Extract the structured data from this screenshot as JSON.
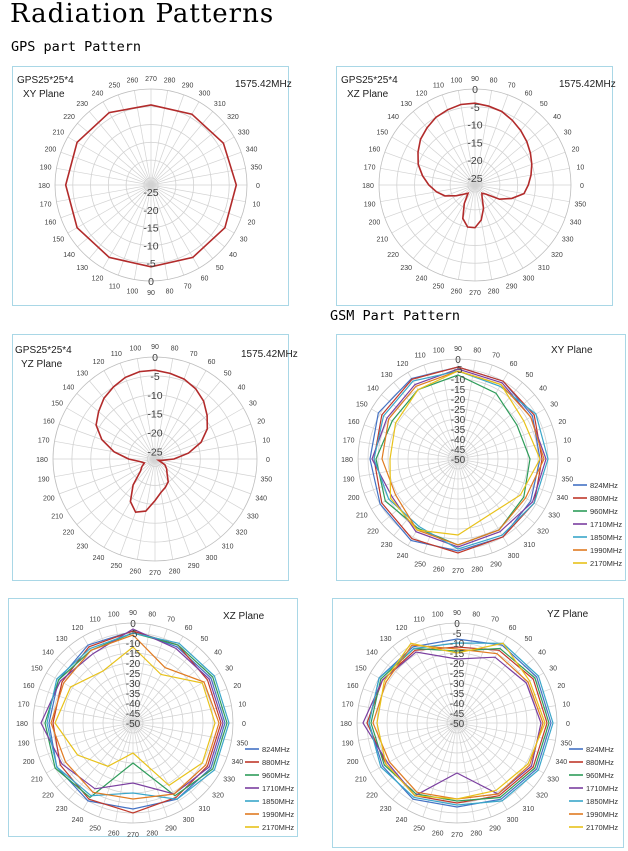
{
  "page": {
    "title": "Radiation Patterns",
    "gps_section": "GPS part Pattern",
    "gsm_section": "GSM Part Pattern"
  },
  "chart_data": [
    {
      "type": "polar-line",
      "label": "GPS25*25*4",
      "plane": "XY Plane",
      "frequency": "1575.42MHz",
      "r_ticks": [
        0,
        -5,
        -10,
        -15,
        -20,
        -25
      ],
      "r_min": -27,
      "r_max": 0,
      "theta_labels": [
        0,
        10,
        20,
        30,
        40,
        50,
        60,
        70,
        80,
        90,
        100,
        110,
        120,
        130,
        140,
        150,
        160,
        170,
        180,
        190,
        200,
        210,
        220,
        230,
        240,
        250,
        260,
        270,
        280,
        290,
        300,
        310,
        320,
        330,
        340,
        350
      ],
      "angle_orientation": "0 at right, increasing clockwise",
      "series": [
        {
          "color": "#b22b2b",
          "angles": [
            0,
            30,
            60,
            90,
            120,
            150,
            180,
            210,
            240,
            270,
            300,
            330
          ],
          "values": [
            -3.0,
            -3.0,
            -3.5,
            -4.0,
            -3.5,
            -3.0,
            -3.0,
            -3.0,
            -3.5,
            -4.5,
            -4.0,
            -3.5
          ]
        }
      ]
    },
    {
      "type": "polar-line",
      "label": "GPS25*25*4",
      "plane": "XZ Plane",
      "frequency": "1575.42MHz",
      "r_ticks": [
        0,
        -5,
        -10,
        -15,
        -20,
        -25
      ],
      "r_min": -27,
      "r_max": 0,
      "theta_labels": [
        0,
        10,
        20,
        30,
        40,
        50,
        60,
        70,
        80,
        90,
        100,
        110,
        120,
        130,
        140,
        150,
        160,
        170,
        180,
        190,
        200,
        210,
        220,
        230,
        240,
        250,
        260,
        270,
        280,
        290,
        300,
        310,
        320,
        330,
        340,
        350
      ],
      "angle_orientation": "0 at right, increasing counter-clockwise",
      "series": [
        {
          "color": "#b22b2b",
          "angles": [
            0,
            10,
            20,
            30,
            40,
            50,
            60,
            70,
            80,
            90,
            100,
            110,
            120,
            130,
            140,
            150,
            160,
            170,
            180,
            190,
            200,
            210,
            220,
            230,
            240,
            250,
            260,
            270,
            280,
            290,
            300,
            310,
            320,
            330,
            340,
            350
          ],
          "values": [
            -12,
            -11,
            -10,
            -9,
            -8,
            -7,
            -6,
            -5,
            -4.5,
            -4,
            -4,
            -4.5,
            -5,
            -6,
            -7,
            -8.5,
            -10,
            -12,
            -14,
            -16,
            -18,
            -21,
            -23,
            -24,
            -21,
            -17,
            -15,
            -15,
            -17,
            -20,
            -23,
            -24,
            -23,
            -19,
            -16,
            -13
          ]
        }
      ]
    },
    {
      "type": "polar-line",
      "label": "GPS25*25*4",
      "plane": "YZ Plane",
      "frequency": "1575.42MHz",
      "r_ticks": [
        0,
        -5,
        -10,
        -15,
        -20,
        -25
      ],
      "r_min": -27,
      "r_max": 0,
      "theta_labels": [
        0,
        10,
        20,
        30,
        40,
        50,
        60,
        70,
        80,
        90,
        100,
        110,
        120,
        130,
        140,
        150,
        160,
        170,
        180,
        190,
        200,
        210,
        220,
        230,
        240,
        250,
        260,
        270,
        280,
        290,
        300,
        310,
        320,
        330,
        340,
        350
      ],
      "angle_orientation": "0 at right, increasing counter-clockwise",
      "series": [
        {
          "color": "#b22b2b",
          "angles": [
            0,
            10,
            20,
            30,
            40,
            50,
            60,
            70,
            80,
            90,
            100,
            110,
            120,
            130,
            140,
            150,
            160,
            170,
            180,
            190,
            200,
            210,
            220,
            230,
            240,
            250,
            260,
            270,
            280,
            290,
            300,
            310,
            320,
            330,
            340,
            350
          ],
          "values": [
            -22,
            -18,
            -14,
            -11,
            -9,
            -7,
            -5.5,
            -4.5,
            -4,
            -3.5,
            -3.5,
            -4,
            -5,
            -6,
            -7.5,
            -9,
            -12,
            -16,
            -20,
            -23,
            -24,
            -23,
            -22,
            -18,
            -14,
            -12,
            -13,
            -16,
            -18,
            -19,
            -20,
            -22,
            -23,
            -24,
            -26,
            -25
          ]
        }
      ]
    },
    {
      "type": "polar-line",
      "plane": "XY Plane",
      "r_ticks": [
        0,
        -5,
        -10,
        -15,
        -20,
        -25,
        -30,
        -35,
        -40,
        -45,
        -50
      ],
      "r_min": -50,
      "r_max": 0,
      "theta_labels": [
        0,
        10,
        20,
        30,
        40,
        50,
        60,
        70,
        80,
        90,
        100,
        110,
        120,
        130,
        140,
        150,
        160,
        170,
        180,
        190,
        200,
        210,
        220,
        230,
        240,
        250,
        260,
        270,
        280,
        290,
        300,
        310,
        320,
        330,
        340,
        350
      ],
      "angle_orientation": "0 at right, increasing counter-clockwise",
      "series": [
        {
          "name": "824MHz",
          "color": "#4472c4",
          "angles": [
            0,
            30,
            60,
            90,
            120,
            150,
            180,
            210,
            240,
            270,
            300,
            330
          ],
          "values": [
            -9,
            -7,
            -5,
            -4,
            -3.5,
            -4,
            -6,
            -5,
            -3,
            -4,
            -5,
            -8
          ]
        },
        {
          "name": "880MHz",
          "color": "#c0392b",
          "angles": [
            0,
            30,
            60,
            90,
            120,
            150,
            180,
            210,
            240,
            270,
            300,
            330
          ],
          "values": [
            -8,
            -6,
            -5,
            -4,
            -4,
            -6,
            -8,
            -6,
            -4,
            -3,
            -5,
            -6
          ]
        },
        {
          "name": "960MHz",
          "color": "#2e9c5a",
          "angles": [
            0,
            30,
            60,
            90,
            120,
            150,
            180,
            210,
            240,
            270,
            300,
            330
          ],
          "values": [
            -14,
            -16,
            -12,
            -8,
            -10,
            -12,
            -9,
            -8,
            -10,
            -7,
            -9,
            -12
          ]
        },
        {
          "name": "1710MHz",
          "color": "#7b3fa0",
          "angles": [
            0,
            30,
            60,
            90,
            120,
            150,
            180,
            210,
            240,
            270,
            300,
            330
          ],
          "values": [
            -6,
            -8,
            -6,
            -5,
            -7,
            -9,
            -7,
            -12,
            -8,
            -6,
            -8,
            -7
          ]
        },
        {
          "name": "1850MHz",
          "color": "#3aa6c9",
          "angles": [
            0,
            30,
            60,
            90,
            120,
            150,
            180,
            210,
            240,
            270,
            300,
            330
          ],
          "values": [
            -5,
            -5,
            -8,
            -6,
            -5,
            -7,
            -8,
            -10,
            -11,
            -5,
            -6,
            -6
          ]
        },
        {
          "name": "1990MHz",
          "color": "#e07b22",
          "angles": [
            0,
            30,
            60,
            90,
            120,
            150,
            180,
            210,
            240,
            270,
            300,
            330
          ],
          "values": [
            -7,
            -8,
            -7,
            -6,
            -8,
            -10,
            -12,
            -14,
            -9,
            -7,
            -9,
            -11
          ]
        },
        {
          "name": "2170MHz",
          "color": "#e8c21a",
          "angles": [
            0,
            30,
            60,
            90,
            120,
            150,
            180,
            210,
            240,
            270,
            300,
            330
          ],
          "values": [
            -9,
            -12,
            -7,
            -6,
            -10,
            -14,
            -16,
            -11,
            -9,
            -12,
            -18,
            -14
          ]
        }
      ]
    },
    {
      "type": "polar-line",
      "plane": "XZ Plane",
      "r_ticks": [
        0,
        -5,
        -10,
        -15,
        -20,
        -25,
        -30,
        -35,
        -40,
        -45,
        -50
      ],
      "r_min": -50,
      "r_max": 0,
      "theta_labels": [
        0,
        10,
        20,
        30,
        40,
        50,
        60,
        70,
        80,
        90,
        100,
        110,
        120,
        130,
        140,
        150,
        160,
        170,
        180,
        190,
        200,
        210,
        220,
        230,
        240,
        250,
        260,
        270,
        280,
        290,
        300,
        310,
        320,
        330,
        340,
        350
      ],
      "angle_orientation": "0 at right, increasing counter-clockwise",
      "series": [
        {
          "name": "824MHz",
          "color": "#4472c4",
          "angles": [
            0,
            30,
            60,
            90,
            120,
            150,
            180,
            210,
            240,
            270,
            300,
            330
          ],
          "values": [
            -4,
            -5,
            -6,
            -4,
            -5,
            -7,
            -8,
            -6,
            -5,
            -7,
            -6,
            -5
          ]
        },
        {
          "name": "880MHz",
          "color": "#c0392b",
          "angles": [
            0,
            30,
            60,
            90,
            120,
            150,
            180,
            210,
            240,
            270,
            300,
            330
          ],
          "values": [
            -6,
            -7,
            -5,
            -4,
            -6,
            -9,
            -10,
            -8,
            -6,
            -5,
            -7,
            -7
          ]
        },
        {
          "name": "960MHz",
          "color": "#2e9c5a",
          "angles": [
            0,
            30,
            60,
            90,
            120,
            150,
            180,
            210,
            240,
            270,
            300,
            330
          ],
          "values": [
            -3,
            -4,
            -5,
            -5,
            -8,
            -7,
            -6,
            -5,
            -7,
            -30,
            -8,
            -4
          ]
        },
        {
          "name": "1710MHz",
          "color": "#7b3fa0",
          "angles": [
            0,
            30,
            60,
            90,
            120,
            150,
            180,
            210,
            240,
            270,
            300,
            330
          ],
          "values": [
            -5,
            -6,
            -7,
            -3,
            -10,
            -8,
            -4,
            -9,
            -12,
            -20,
            -9,
            -6
          ]
        },
        {
          "name": "1850MHz",
          "color": "#3aa6c9",
          "angles": [
            0,
            30,
            60,
            90,
            120,
            150,
            180,
            210,
            240,
            270,
            300,
            330
          ],
          "values": [
            -2,
            -3,
            -4,
            -5,
            -7,
            -6,
            -7,
            -6,
            -8,
            -15,
            -6,
            -3
          ]
        },
        {
          "name": "1990MHz",
          "color": "#e07b22",
          "angles": [
            0,
            30,
            60,
            90,
            120,
            150,
            180,
            210,
            240,
            270,
            300,
            330
          ],
          "values": [
            -7,
            -9,
            -18,
            -6,
            -8,
            -10,
            -9,
            -11,
            -10,
            -12,
            -9,
            -8
          ]
        },
        {
          "name": "2170MHz",
          "color": "#e8c21a",
          "angles": [
            0,
            30,
            60,
            90,
            120,
            150,
            180,
            210,
            240,
            270,
            300,
            330
          ],
          "values": [
            -9,
            -10,
            -22,
            -12,
            -20,
            -14,
            -11,
            -18,
            -25,
            -35,
            -14,
            -10
          ]
        }
      ]
    },
    {
      "type": "polar-line",
      "plane": "YZ Plane",
      "r_ticks": [
        0,
        -5,
        -10,
        -15,
        -20,
        -25,
        -30,
        -35,
        -40,
        -45,
        -50
      ],
      "r_min": -50,
      "r_max": 0,
      "theta_labels": [
        0,
        10,
        20,
        30,
        40,
        50,
        60,
        70,
        80,
        90,
        100,
        110,
        120,
        130,
        140,
        150,
        160,
        170,
        180,
        190,
        200,
        210,
        220,
        230,
        240,
        250,
        260,
        270,
        280,
        290,
        300,
        310,
        320,
        330,
        340,
        350
      ],
      "angle_orientation": "0 at right, increasing counter-clockwise",
      "series": [
        {
          "name": "824MHz",
          "color": "#4472c4",
          "angles": [
            0,
            30,
            60,
            90,
            120,
            150,
            180,
            210,
            240,
            270,
            300,
            330
          ],
          "values": [
            -3,
            -4,
            -5,
            -8,
            -6,
            -5,
            -6,
            -7,
            -6,
            -8,
            -6,
            -4
          ]
        },
        {
          "name": "880MHz",
          "color": "#c0392b",
          "angles": [
            0,
            30,
            60,
            90,
            120,
            150,
            180,
            210,
            240,
            270,
            300,
            330
          ],
          "values": [
            -5,
            -6,
            -8,
            -12,
            -8,
            -7,
            -5,
            -9,
            -8,
            -10,
            -8,
            -6
          ]
        },
        {
          "name": "960MHz",
          "color": "#2e9c5a",
          "angles": [
            0,
            30,
            60,
            90,
            120,
            150,
            180,
            210,
            240,
            270,
            300,
            330
          ],
          "values": [
            -4,
            -5,
            -7,
            -14,
            -7,
            -6,
            -7,
            -8,
            -9,
            -11,
            -7,
            -5
          ]
        },
        {
          "name": "1710MHz",
          "color": "#7b3fa0",
          "angles": [
            0,
            30,
            60,
            90,
            120,
            150,
            180,
            210,
            240,
            270,
            300,
            330
          ],
          "values": [
            -8,
            -10,
            -12,
            -18,
            -9,
            -7,
            -3,
            -10,
            -8,
            -25,
            -9,
            -7
          ]
        },
        {
          "name": "1850MHz",
          "color": "#3aa6c9",
          "angles": [
            0,
            30,
            60,
            90,
            120,
            150,
            180,
            210,
            240,
            270,
            300,
            330
          ],
          "values": [
            -2,
            -3,
            -4,
            -10,
            -7,
            -5,
            -6,
            -6,
            -7,
            -9,
            -5,
            -3
          ]
        },
        {
          "name": "1990MHz",
          "color": "#e07b22",
          "angles": [
            0,
            30,
            60,
            90,
            120,
            150,
            180,
            210,
            240,
            270,
            300,
            330
          ],
          "values": [
            -7,
            -9,
            -10,
            -13,
            -5,
            -9,
            -8,
            -11,
            -10,
            -12,
            -9,
            -8
          ]
        },
        {
          "name": "2170MHz",
          "color": "#e8c21a",
          "angles": [
            0,
            30,
            60,
            90,
            120,
            150,
            180,
            210,
            240,
            270,
            300,
            330
          ],
          "values": [
            -6,
            -8,
            -4,
            -15,
            -4,
            -8,
            -10,
            -9,
            -8,
            -12,
            -11,
            -9
          ]
        }
      ]
    }
  ]
}
